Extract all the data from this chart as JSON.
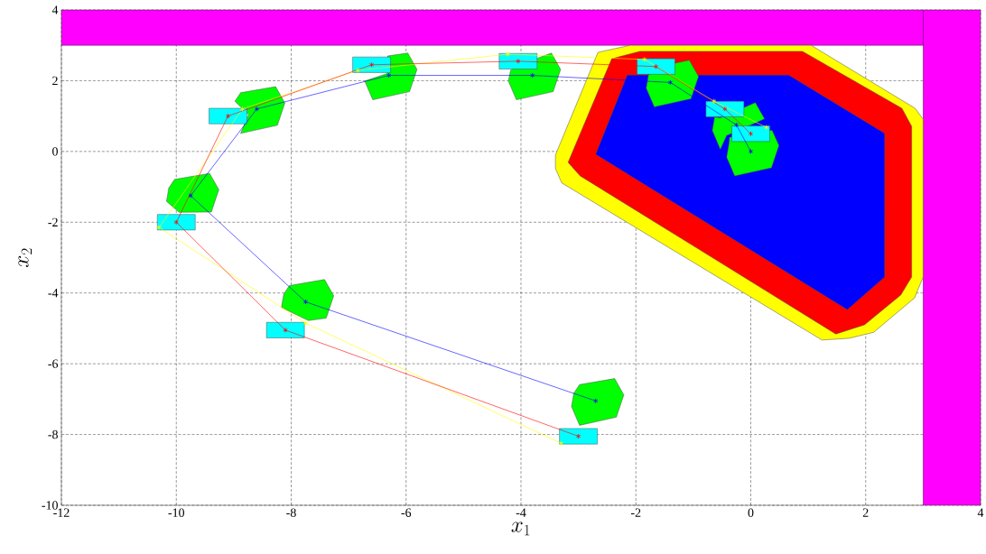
{
  "chart_data": {
    "type": "line",
    "xlabel": "x_1",
    "ylabel": "x_2",
    "xlim": [
      -12,
      4
    ],
    "ylim": [
      -10,
      4
    ],
    "xticks": [
      -12,
      -10,
      -8,
      -6,
      -4,
      -2,
      0,
      2,
      4
    ],
    "yticks": [
      -10,
      -8,
      -6,
      -4,
      -2,
      0,
      2,
      4
    ],
    "grid": true,
    "bands": [
      {
        "axis": "y",
        "from": 3,
        "to": 4,
        "color": "#ff00ff"
      },
      {
        "axis": "x",
        "from": 3,
        "to": 4,
        "color": "#ff00ff"
      }
    ],
    "series": [
      {
        "type": "area",
        "color": "#ffff00",
        "x": [
          -2.66,
          -2.1,
          1.05,
          2.86,
          3.0,
          3.0,
          2.85,
          2.14,
          1.71,
          1.24,
          -3.29,
          -3.4,
          -3.4
        ],
        "values": [
          2.8,
          3.0,
          3.0,
          1.22,
          0.91,
          -3.55,
          -4.14,
          -5.11,
          -5.28,
          -5.33,
          -0.89,
          -0.48,
          -0.1
        ]
      },
      {
        "type": "area",
        "color": "#ff0000",
        "x": [
          -2.42,
          -1.93,
          0.9,
          2.63,
          2.8,
          2.8,
          2.61,
          1.98,
          1.48,
          -2.97,
          -3.18
        ],
        "values": [
          2.62,
          2.83,
          2.83,
          1.22,
          0.71,
          -3.55,
          -4.06,
          -4.9,
          -5.16,
          -0.69,
          -0.31
        ]
      },
      {
        "type": "area",
        "color": "#0000ff",
        "x": [
          -2.15,
          0.66,
          2.33,
          2.33,
          1.68,
          -2.7
        ],
        "values": [
          2.16,
          2.16,
          0.51,
          -3.55,
          -4.47,
          -0.08
        ]
      },
      {
        "type": "area",
        "color": "#00ff00",
        "x": [
          -2.98,
          -2.37,
          -2.21,
          -2.34,
          -2.98,
          -3.12,
          -3.08
        ],
        "values": [
          -6.59,
          -6.42,
          -6.88,
          -7.51,
          -7.74,
          -7.21,
          -6.83
        ]
      },
      {
        "type": "area",
        "color": "#00ff00",
        "x": [
          -8.03,
          -7.42,
          -7.26,
          -7.39,
          -7.7,
          -8.17,
          -8.13
        ],
        "values": [
          -3.79,
          -3.62,
          -4.08,
          -4.71,
          -4.78,
          -4.41,
          -4.03
        ]
      },
      {
        "type": "area",
        "color": "#00ff00",
        "x": [
          -10.03,
          -9.42,
          -9.26,
          -9.39,
          -9.95,
          -10.17,
          -10.13
        ],
        "values": [
          -0.79,
          -0.62,
          -1.08,
          -1.71,
          -1.72,
          -1.41,
          -1.03
        ]
      },
      {
        "type": "area",
        "color": "#00ff00",
        "x": [
          -8.88,
          -8.27,
          -8.11,
          -8.24,
          -8.88,
          -8.74,
          -8.98
        ],
        "values": [
          1.66,
          1.83,
          1.37,
          0.74,
          0.51,
          1.04,
          1.42
        ]
      },
      {
        "type": "area",
        "color": "#00ff00",
        "x": [
          -6.32,
          -5.97,
          -5.81,
          -5.94,
          -6.58,
          -6.72,
          -6.33
        ],
        "values": [
          2.7,
          2.78,
          2.32,
          1.69,
          1.46,
          1.99,
          2.2
        ]
      },
      {
        "type": "area",
        "color": "#00ff00",
        "x": [
          -3.69,
          -3.47,
          -3.31,
          -3.44,
          -4.08,
          -4.22,
          -4.18
        ],
        "values": [
          2.65,
          2.78,
          2.32,
          1.69,
          1.46,
          1.99,
          2.3
        ]
      },
      {
        "type": "area",
        "color": "#00ff00",
        "x": [
          -1.3,
          -1.07,
          -0.91,
          -1.04,
          -1.68,
          -1.82,
          -1.78
        ],
        "values": [
          2.5,
          2.58,
          2.12,
          1.49,
          1.26,
          1.79,
          2.17
        ]
      },
      {
        "type": "area",
        "color": "#00ff00",
        "x": [
          -0.53,
          0.08,
          0.24,
          -0.42,
          -0.53,
          -0.67,
          -0.63
        ],
        "values": [
          0.95,
          1.38,
          0.92,
          0.45,
          0.06,
          0.59,
          0.97
        ]
      },
      {
        "type": "area",
        "color": "#00ff00",
        "x": [
          -0.37,
          0.37,
          0.49,
          0.36,
          -0.28,
          -0.42,
          -0.38
        ],
        "values": [
          0.4,
          0.6,
          0.17,
          -0.46,
          -0.69,
          -0.16,
          0.22
        ]
      },
      {
        "type": "area",
        "color": "#00ffff",
        "x": [
          -3.33,
          -2.67,
          -2.67,
          -3.33
        ],
        "values": [
          -8.27,
          -8.27,
          -7.83,
          -7.83
        ]
      },
      {
        "type": "area",
        "color": "#00ffff",
        "x": [
          -8.43,
          -7.77,
          -7.77,
          -8.43
        ],
        "values": [
          -5.27,
          -5.27,
          -4.83,
          -4.83
        ]
      },
      {
        "type": "area",
        "color": "#00ffff",
        "x": [
          -10.33,
          -9.67,
          -9.67,
          -10.33
        ],
        "values": [
          -2.22,
          -2.22,
          -1.78,
          -1.78
        ]
      },
      {
        "type": "area",
        "color": "#00ffff",
        "x": [
          -9.43,
          -8.77,
          -8.77,
          -9.43
        ],
        "values": [
          0.78,
          0.78,
          1.22,
          1.22
        ]
      },
      {
        "type": "area",
        "color": "#00ffff",
        "x": [
          -6.93,
          -6.27,
          -6.27,
          -6.93
        ],
        "values": [
          2.23,
          2.23,
          2.67,
          2.67
        ]
      },
      {
        "type": "area",
        "color": "#00ffff",
        "x": [
          -4.38,
          -3.72,
          -3.72,
          -4.38
        ],
        "values": [
          2.33,
          2.33,
          2.77,
          2.77
        ]
      },
      {
        "type": "area",
        "color": "#00ffff",
        "x": [
          -1.98,
          -1.32,
          -1.32,
          -1.98
        ],
        "values": [
          2.18,
          2.18,
          2.62,
          2.62
        ]
      },
      {
        "type": "area",
        "color": "#00ffff",
        "x": [
          -0.78,
          -0.12,
          -0.12,
          -0.78
        ],
        "values": [
          0.98,
          0.98,
          1.42,
          1.42
        ]
      },
      {
        "type": "area",
        "color": "#00ffff",
        "x": [
          -0.33,
          0.33,
          0.33,
          -0.33
        ],
        "values": [
          0.28,
          0.28,
          0.72,
          0.72
        ]
      },
      {
        "type": "line",
        "marker": "cross",
        "color": "#ffff00",
        "x": [
          -3.3,
          -7.75,
          -10.3,
          -8.85,
          -6.84,
          -4.23,
          -1.85,
          -0.64,
          0.27
        ],
        "values": [
          -8.25,
          -4.85,
          -2.15,
          1.2,
          2.29,
          2.75,
          2.6,
          1.42,
          0.68
        ]
      },
      {
        "type": "line",
        "marker": "cross",
        "color": "#ff0000",
        "x": [
          -3.0,
          -8.1,
          -10.0,
          -9.1,
          -6.6,
          -4.05,
          -1.65,
          -0.45,
          0.0
        ],
        "values": [
          -8.05,
          -5.05,
          -2.0,
          1.0,
          2.45,
          2.55,
          2.4,
          1.2,
          0.5
        ]
      },
      {
        "type": "line",
        "marker": "cross",
        "color": "#0000ff",
        "x": [
          -2.7,
          -7.75,
          -9.75,
          -8.6,
          -6.3,
          -3.8,
          -1.4,
          -0.25,
          0.0
        ],
        "values": [
          -7.05,
          -4.25,
          -1.25,
          1.2,
          2.15,
          2.15,
          1.95,
          0.75,
          0.0
        ]
      }
    ]
  }
}
